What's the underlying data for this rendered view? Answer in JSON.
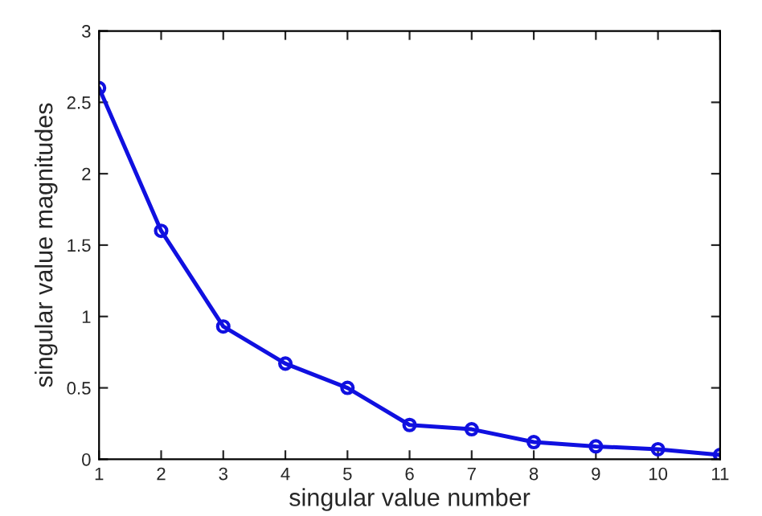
{
  "chart_data": {
    "type": "line",
    "xlabel": "singular value number",
    "ylabel": "singular value magnitudes",
    "x": [
      1,
      2,
      3,
      4,
      5,
      6,
      7,
      8,
      9,
      10,
      11
    ],
    "series": [
      {
        "color": "#1010e0",
        "values": [
          2.6,
          1.6,
          0.93,
          0.67,
          0.5,
          0.24,
          0.21,
          0.12,
          0.09,
          0.07,
          0.03
        ]
      }
    ],
    "xlim": [
      1,
      11
    ],
    "ylim": [
      0,
      3
    ],
    "xticks": [
      1,
      2,
      3,
      4,
      5,
      6,
      7,
      8,
      9,
      10,
      11
    ],
    "yticks": [
      0,
      0.5,
      1,
      1.5,
      2,
      2.5,
      3
    ],
    "marker": "circle",
    "line_style": "solid",
    "grid": false,
    "legend": false
  }
}
